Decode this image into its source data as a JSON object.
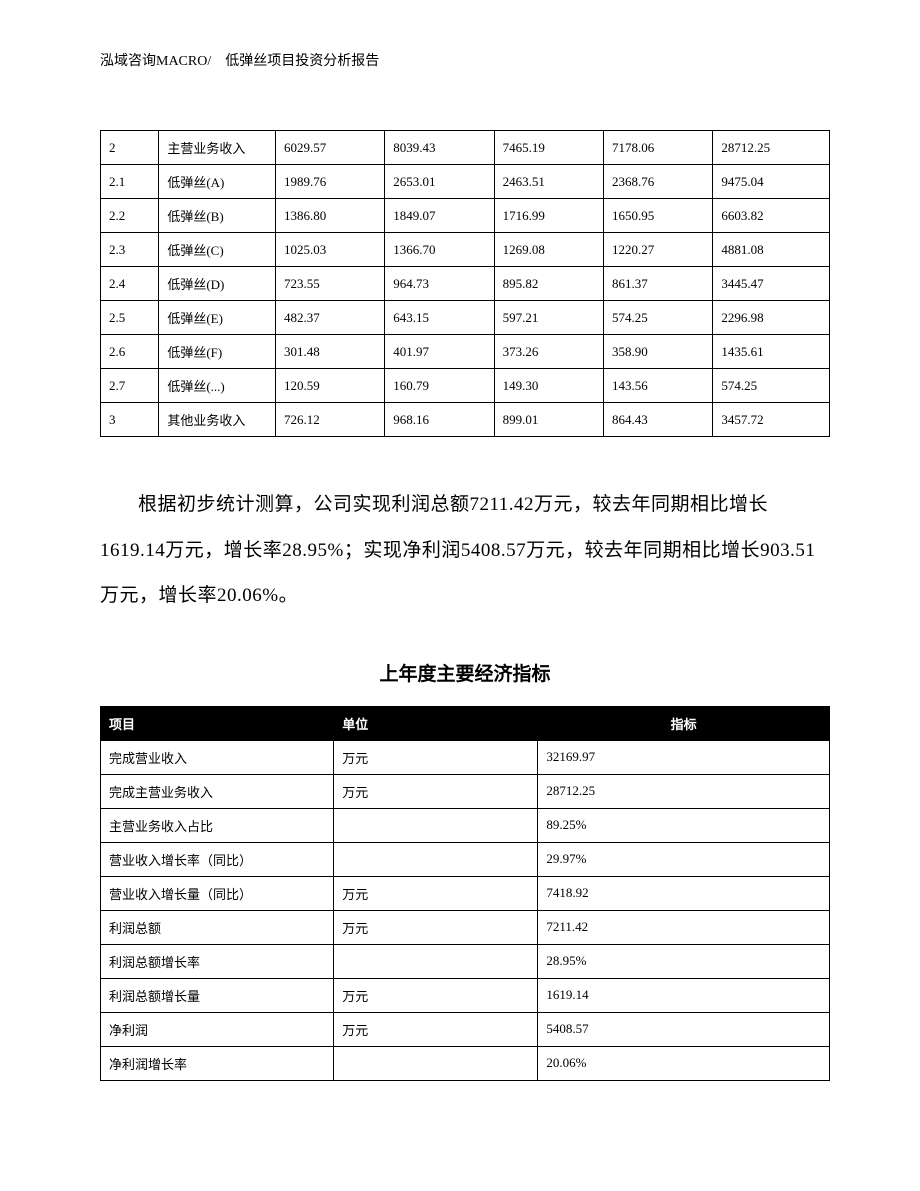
{
  "header": "泓域咨询MACRO/　低弹丝项目投资分析报告",
  "table1": {
    "type": "table",
    "border_color": "#000000",
    "background_color": "#ffffff",
    "text_color": "#000000",
    "font_size": 13,
    "col_widths_pct": [
      8,
      16,
      15,
      15,
      15,
      15,
      16
    ],
    "rows": [
      [
        "2",
        "主营业务收入",
        "6029.57",
        "8039.43",
        "7465.19",
        "7178.06",
        "28712.25"
      ],
      [
        "2.1",
        "低弹丝(A)",
        "1989.76",
        "2653.01",
        "2463.51",
        "2368.76",
        "9475.04"
      ],
      [
        "2.2",
        "低弹丝(B)",
        "1386.80",
        "1849.07",
        "1716.99",
        "1650.95",
        "6603.82"
      ],
      [
        "2.3",
        "低弹丝(C)",
        "1025.03",
        "1366.70",
        "1269.08",
        "1220.27",
        "4881.08"
      ],
      [
        "2.4",
        "低弹丝(D)",
        "723.55",
        "964.73",
        "895.82",
        "861.37",
        "3445.47"
      ],
      [
        "2.5",
        "低弹丝(E)",
        "482.37",
        "643.15",
        "597.21",
        "574.25",
        "2296.98"
      ],
      [
        "2.6",
        "低弹丝(F)",
        "301.48",
        "401.97",
        "373.26",
        "358.90",
        "1435.61"
      ],
      [
        "2.7",
        "低弹丝(...)",
        "120.59",
        "160.79",
        "149.30",
        "143.56",
        "574.25"
      ],
      [
        "3",
        "其他业务收入",
        "726.12",
        "968.16",
        "899.01",
        "864.43",
        "3457.72"
      ]
    ]
  },
  "paragraph": "根据初步统计测算，公司实现利润总额7211.42万元，较去年同期相比增长1619.14万元，增长率28.95%；实现净利润5408.57万元，较去年同期相比增长903.51万元，增长率20.06%。",
  "subtitle": "上年度主要经济指标",
  "table2": {
    "type": "table",
    "border_color": "#000000",
    "header_bg_color": "#000000",
    "header_text_color": "#ffffff",
    "background_color": "#ffffff",
    "text_color": "#000000",
    "font_size": 13,
    "col_widths_pct": [
      32,
      28,
      40
    ],
    "columns": [
      "项目",
      "单位",
      "指标"
    ],
    "rows": [
      [
        "完成营业收入",
        "万元",
        "32169.97"
      ],
      [
        "完成主营业务收入",
        "万元",
        "28712.25"
      ],
      [
        "主营业务收入占比",
        "",
        "89.25%"
      ],
      [
        "营业收入增长率（同比）",
        "",
        "29.97%"
      ],
      [
        "营业收入增长量（同比）",
        "万元",
        "7418.92"
      ],
      [
        "利润总额",
        "万元",
        "7211.42"
      ],
      [
        "利润总额增长率",
        "",
        "28.95%"
      ],
      [
        "利润总额增长量",
        "万元",
        "1619.14"
      ],
      [
        "净利润",
        "万元",
        "5408.57"
      ],
      [
        "净利润增长率",
        "",
        "20.06%"
      ]
    ]
  }
}
